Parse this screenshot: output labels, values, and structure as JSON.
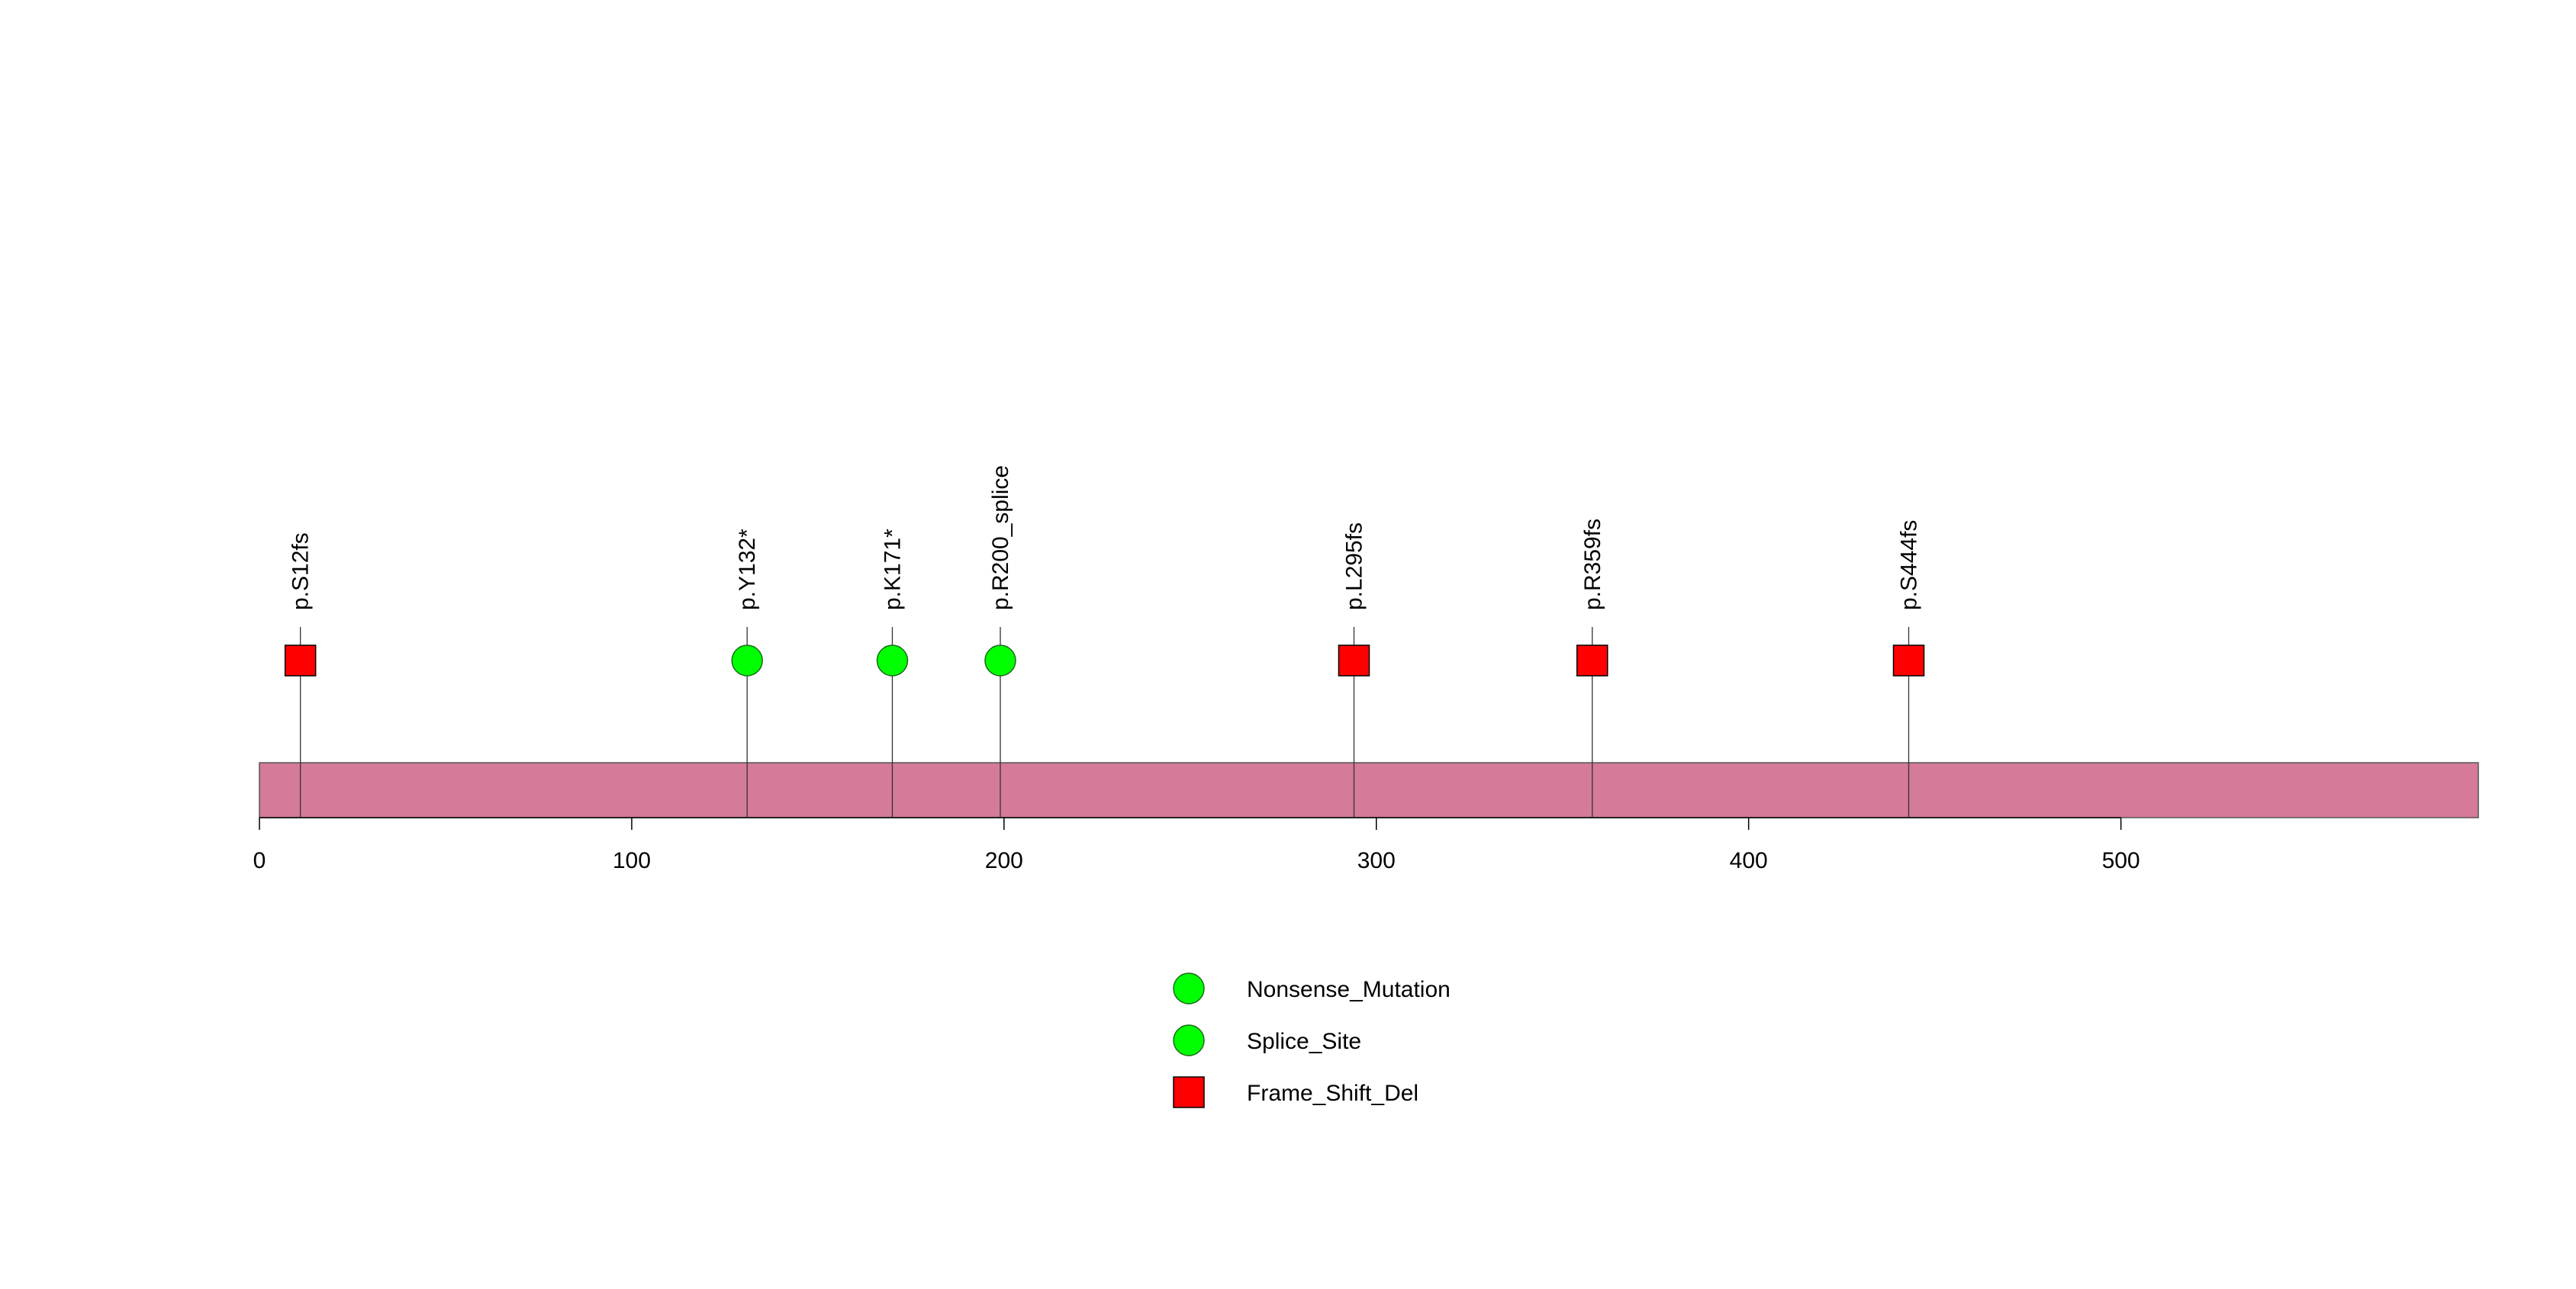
{
  "chart_data": {
    "type": "lollipop",
    "protein_length": 596,
    "xlim": [
      0,
      596
    ],
    "x_ticks": [
      0,
      100,
      200,
      300,
      400,
      500
    ],
    "colors": {
      "protein_bar": "#d57a99",
      "outline": "#000000",
      "Nonsense_Mutation": "#00ff00",
      "Splice_Site": "#00ff00",
      "Frame_Shift_Del": "#ff0000"
    },
    "mutations": [
      {
        "label": "p.S12fs",
        "position": 11,
        "type": "Frame_Shift_Del",
        "shape": "square"
      },
      {
        "label": "p.Y132*",
        "position": 131,
        "type": "Nonsense_Mutation",
        "shape": "circle"
      },
      {
        "label": "p.K171*",
        "position": 170,
        "type": "Nonsense_Mutation",
        "shape": "circle"
      },
      {
        "label": "p.R200_splice",
        "position": 199,
        "type": "Splice_Site",
        "shape": "circle"
      },
      {
        "label": "p.L295fs",
        "position": 294,
        "type": "Frame_Shift_Del",
        "shape": "square"
      },
      {
        "label": "p.R359fs",
        "position": 358,
        "type": "Frame_Shift_Del",
        "shape": "square"
      },
      {
        "label": "p.S444fs",
        "position": 443,
        "type": "Frame_Shift_Del",
        "shape": "square"
      }
    ],
    "legend": [
      {
        "label": "Nonsense_Mutation",
        "shape": "circle",
        "color": "#00ff00"
      },
      {
        "label": "Splice_Site",
        "shape": "circle",
        "color": "#00ff00"
      },
      {
        "label": "Frame_Shift_Del",
        "shape": "square",
        "color": "#ff0000"
      }
    ]
  }
}
